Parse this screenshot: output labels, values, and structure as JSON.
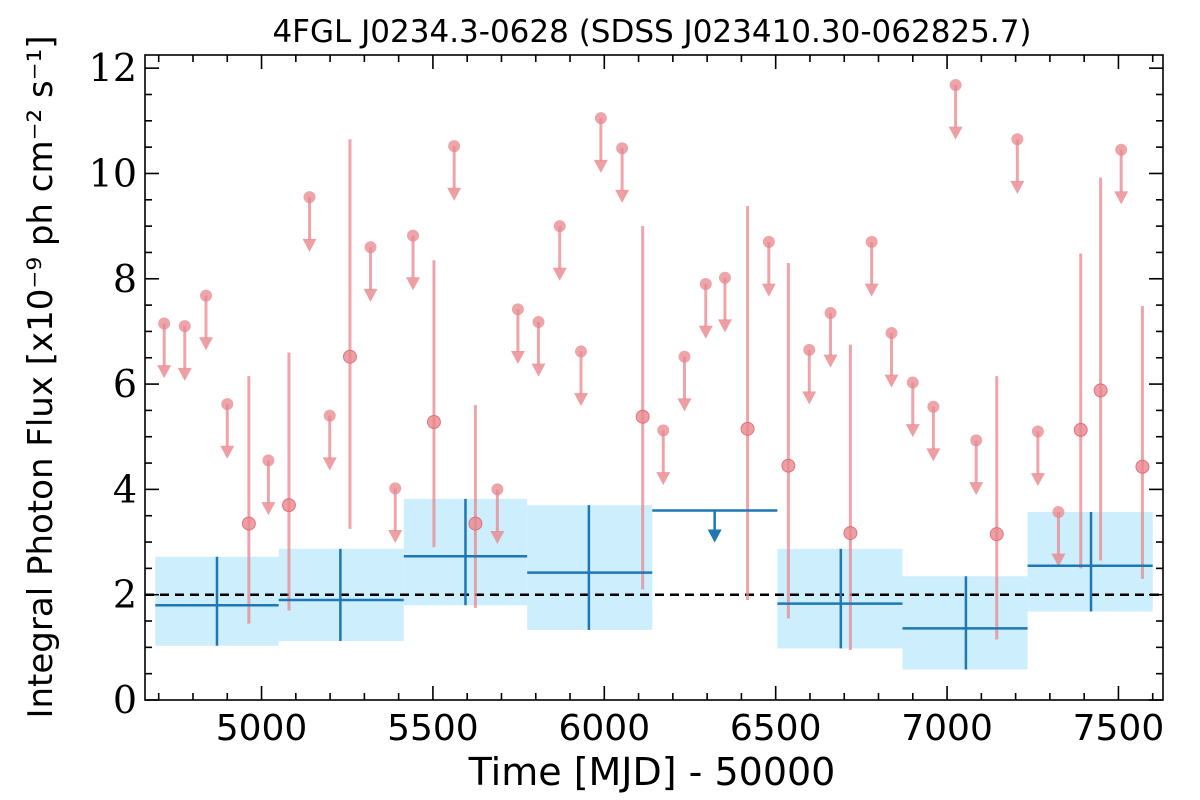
{
  "chart_data": {
    "type": "scatter",
    "title": "4FGL J0234.3-0628 (SDSS J023410.30-062825.7)",
    "xlabel": "Time [MJD] - 50000",
    "ylabel": "Integral Photon Flux [x10⁻⁹ ph cm⁻² s⁻¹]",
    "xlim": [
      4660,
      7630
    ],
    "ylim": [
      0,
      12.25
    ],
    "xticks": [
      5000,
      5500,
      6000,
      6500,
      7000,
      7500
    ],
    "xtick_labels": [
      "5000",
      "5500",
      "6000",
      "6500",
      "7000",
      "7500"
    ],
    "yticks": [
      0,
      2,
      4,
      6,
      8,
      10,
      12
    ],
    "ytick_labels": [
      "0",
      "2",
      "4",
      "6",
      "8",
      "10",
      "12"
    ],
    "colors": {
      "short_series": "#e8878d",
      "long_series": "#1f77b4",
      "long_band": "#cdeefc",
      "mean_line": "#000000"
    },
    "mean_flux": 2.0,
    "series": [
      {
        "description": "short-bin detections",
        "points": [
          {
            "x": 4963,
            "y": 3.35,
            "lo": 1.45,
            "hi": 6.15
          },
          {
            "x": 5080,
            "y": 3.7,
            "lo": 1.7,
            "hi": 6.6
          },
          {
            "x": 5258,
            "y": 6.52,
            "lo": 3.25,
            "hi": 10.65
          },
          {
            "x": 5503,
            "y": 5.28,
            "lo": 2.9,
            "hi": 8.35
          },
          {
            "x": 5624,
            "y": 3.35,
            "lo": 1.75,
            "hi": 5.6
          },
          {
            "x": 6112,
            "y": 5.38,
            "lo": 2.1,
            "hi": 9.0
          },
          {
            "x": 6418,
            "y": 5.15,
            "lo": 1.9,
            "hi": 9.38
          },
          {
            "x": 6537,
            "y": 4.45,
            "lo": 1.55,
            "hi": 8.3
          },
          {
            "x": 6718,
            "y": 3.17,
            "lo": 0.95,
            "hi": 6.75
          },
          {
            "x": 7145,
            "y": 3.15,
            "lo": 1.15,
            "hi": 6.15
          },
          {
            "x": 7390,
            "y": 5.13,
            "lo": 2.5,
            "hi": 8.48
          },
          {
            "x": 7448,
            "y": 5.88,
            "lo": 2.65,
            "hi": 9.92
          },
          {
            "x": 7570,
            "y": 4.43,
            "lo": 2.3,
            "hi": 7.48
          }
        ]
      },
      {
        "description": "short-bin upper limits",
        "upper_limits": [
          {
            "x": 4716,
            "y": 7.15
          },
          {
            "x": 4776,
            "y": 7.1
          },
          {
            "x": 4838,
            "y": 7.68
          },
          {
            "x": 4900,
            "y": 5.62
          },
          {
            "x": 5020,
            "y": 4.55
          },
          {
            "x": 5140,
            "y": 9.55
          },
          {
            "x": 5199,
            "y": 5.4
          },
          {
            "x": 5318,
            "y": 8.6
          },
          {
            "x": 5390,
            "y": 4.02
          },
          {
            "x": 5442,
            "y": 8.82
          },
          {
            "x": 5562,
            "y": 10.52
          },
          {
            "x": 5688,
            "y": 4.0
          },
          {
            "x": 5748,
            "y": 7.42
          },
          {
            "x": 5808,
            "y": 7.18
          },
          {
            "x": 5870,
            "y": 9.0
          },
          {
            "x": 5932,
            "y": 6.62
          },
          {
            "x": 5990,
            "y": 11.05
          },
          {
            "x": 6052,
            "y": 10.48
          },
          {
            "x": 6172,
            "y": 5.12
          },
          {
            "x": 6234,
            "y": 6.52
          },
          {
            "x": 6296,
            "y": 7.9
          },
          {
            "x": 6352,
            "y": 8.02
          },
          {
            "x": 6480,
            "y": 8.7
          },
          {
            "x": 6598,
            "y": 6.65
          },
          {
            "x": 6660,
            "y": 7.35
          },
          {
            "x": 6780,
            "y": 8.7
          },
          {
            "x": 6838,
            "y": 6.97
          },
          {
            "x": 6900,
            "y": 6.03
          },
          {
            "x": 6960,
            "y": 5.57
          },
          {
            "x": 7025,
            "y": 11.68
          },
          {
            "x": 7085,
            "y": 4.93
          },
          {
            "x": 7205,
            "y": 10.65
          },
          {
            "x": 7265,
            "y": 5.1
          },
          {
            "x": 7325,
            "y": 3.57
          },
          {
            "x": 7508,
            "y": 10.45
          }
        ]
      },
      {
        "description": "long-bin detections",
        "bins": [
          {
            "x0": 4690,
            "x1": 5050,
            "xc": 4870,
            "y": 1.8,
            "lo": 1.03,
            "hi": 2.72
          },
          {
            "x0": 5050,
            "x1": 5415,
            "xc": 5230,
            "y": 1.9,
            "lo": 1.12,
            "hi": 2.87
          },
          {
            "x0": 5415,
            "x1": 5775,
            "xc": 5595,
            "y": 2.73,
            "lo": 1.8,
            "hi": 3.82
          },
          {
            "x0": 5775,
            "x1": 6140,
            "xc": 5955,
            "y": 2.42,
            "lo": 1.33,
            "hi": 3.7
          },
          {
            "x0": 6505,
            "x1": 6870,
            "xc": 6690,
            "y": 1.83,
            "lo": 0.98,
            "hi": 2.87
          },
          {
            "x0": 6870,
            "x1": 7235,
            "xc": 7055,
            "y": 1.36,
            "lo": 0.58,
            "hi": 2.35
          },
          {
            "x0": 7235,
            "x1": 7600,
            "xc": 7420,
            "y": 2.55,
            "lo": 1.68,
            "hi": 3.57
          }
        ]
      },
      {
        "description": "long-bin upper limits",
        "upper_limits": [
          {
            "x0": 6140,
            "x1": 6505,
            "xc": 6322,
            "y": 3.6
          }
        ]
      }
    ]
  }
}
